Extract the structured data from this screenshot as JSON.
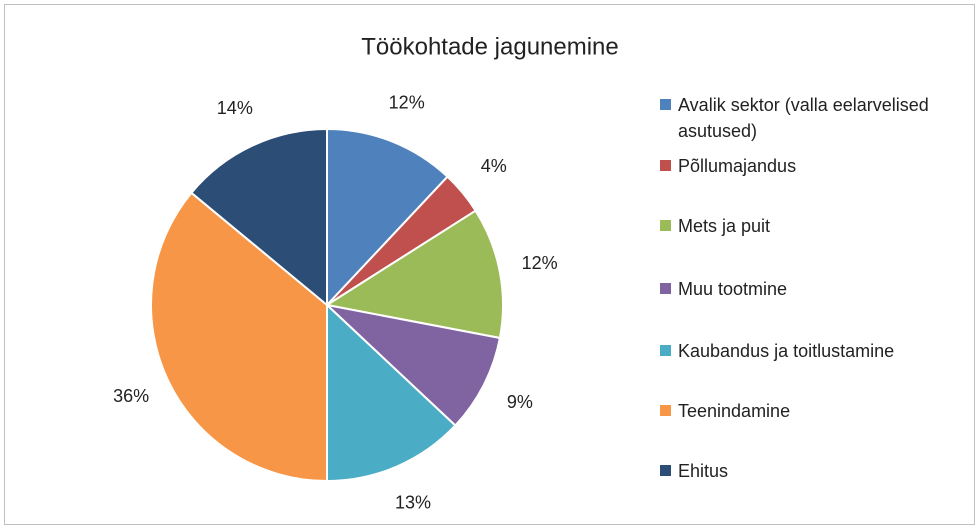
{
  "chart_data": {
    "type": "pie",
    "title": "Töökohtade jagunemine",
    "categories": [
      "Avalik sektor (valla eelarvelised asutused)",
      "Põllumajandus",
      "Mets ja puit",
      "Muu tootmine",
      "Kaubandus ja toitlustamine",
      "Teenindamine",
      "Ehitus"
    ],
    "values": [
      12,
      4,
      12,
      9,
      13,
      36,
      14
    ],
    "value_labels": [
      "12%",
      "4%",
      "12%",
      "9%",
      "13%",
      "36%",
      "14%"
    ],
    "colors": [
      "#4f81bd",
      "#c0504d",
      "#9bbb59",
      "#8064a2",
      "#4bacc6",
      "#f79646",
      "#2c4d75"
    ],
    "legend": "right"
  }
}
